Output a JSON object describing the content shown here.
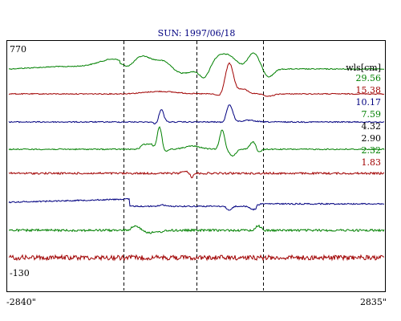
{
  "chart_data": {
    "type": "line",
    "title": "SUN: 1997/06/18",
    "ylim_labels": {
      "top": "770",
      "bottom": "-130"
    },
    "xlim_labels": {
      "left": "-2840\"",
      "right": "2835\""
    },
    "xlim": [
      -2840,
      2835
    ],
    "legend_header": "wls[cm]",
    "legend_placement": "right",
    "grid": false,
    "reference_lines_x": [
      -1105,
      0,
      1005
    ],
    "series": [
      {
        "name": "29.56",
        "color": "#008000"
      },
      {
        "name": "15.38",
        "color": "#a00000"
      },
      {
        "name": "10.17",
        "color": "#000080"
      },
      {
        "name": "7.59",
        "color": "#008000"
      },
      {
        "name": "4.32",
        "color": "#000000"
      },
      {
        "name": "2.90",
        "color": "#000000"
      },
      {
        "name": "2.32",
        "color": "#008000"
      },
      {
        "name": "1.83",
        "color": "#a00000"
      }
    ],
    "traces": [
      {
        "color": "#008000"
      },
      {
        "color": "#a00000"
      },
      {
        "color": "#000080"
      },
      {
        "color": "#008000"
      },
      {
        "color": "#a00000"
      },
      {
        "color": "#000080"
      },
      {
        "color": "#008000"
      },
      {
        "color": "#a00000"
      }
    ]
  }
}
